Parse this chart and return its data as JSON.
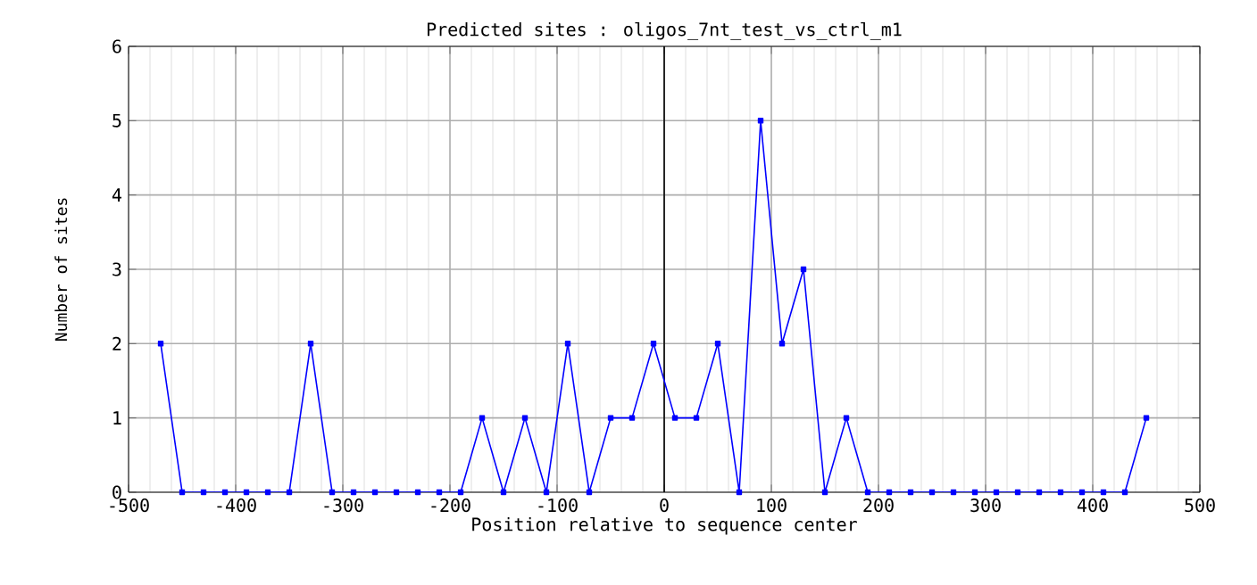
{
  "chart_data": {
    "type": "line",
    "title": "Predicted sites : oligos_7nt_test_vs_ctrl_m1",
    "xlabel": "Position relative to sequence center",
    "ylabel": "Number of sites",
    "x": [
      -470,
      -450,
      -430,
      -410,
      -390,
      -370,
      -350,
      -330,
      -310,
      -290,
      -270,
      -250,
      -230,
      -210,
      -190,
      -170,
      -150,
      -130,
      -110,
      -90,
      -70,
      -50,
      -30,
      -10,
      10,
      30,
      50,
      70,
      90,
      110,
      130,
      150,
      170,
      190,
      210,
      230,
      250,
      270,
      290,
      310,
      330,
      350,
      370,
      390,
      410,
      430,
      450
    ],
    "series": [
      {
        "color": "#0000ff",
        "values": [
          2,
          0,
          0,
          0,
          0,
          0,
          0,
          2,
          0,
          0,
          0,
          0,
          0,
          0,
          0,
          1,
          0,
          1,
          0,
          2,
          0,
          1,
          1,
          2,
          1,
          1,
          2,
          0,
          5,
          2,
          3,
          0,
          1,
          0,
          0,
          0,
          0,
          0,
          0,
          0,
          0,
          0,
          0,
          0,
          0,
          0,
          1
        ]
      }
    ],
    "xlim": [
      -500,
      500
    ],
    "ylim": [
      0,
      6
    ],
    "xticks": [
      -500,
      -400,
      -300,
      -200,
      -100,
      0,
      100,
      200,
      300,
      400,
      500
    ],
    "yticks": [
      0,
      1,
      2,
      3,
      4,
      5,
      6
    ],
    "grid": true,
    "marker": "square",
    "line_style": "solid",
    "ref_lines": [
      {
        "axis": "x",
        "value": 0,
        "color": "#000000"
      }
    ]
  }
}
